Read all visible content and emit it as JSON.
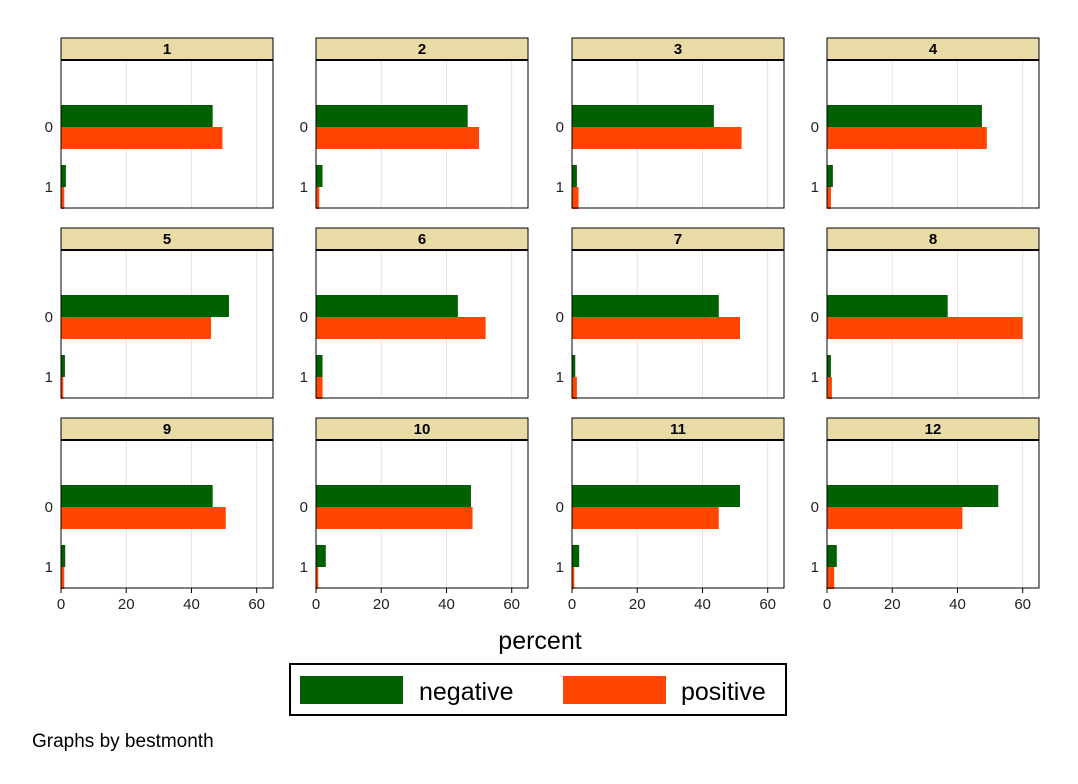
{
  "chart_data": {
    "type": "bar",
    "orientation": "horizontal",
    "facet_by": "bestmonth",
    "categories": [
      "0",
      "1"
    ],
    "xlabel": "percent",
    "xlim": [
      0,
      65
    ],
    "xticks": [
      0,
      20,
      40,
      60
    ],
    "grid": true,
    "legend_position": "bottom",
    "note": "Graphs by bestmonth",
    "series": [
      {
        "name": "negative",
        "color": "#006000"
      },
      {
        "name": "positive",
        "color": "#ff4500"
      }
    ],
    "panels": [
      {
        "label": "1",
        "negative": [
          46.5,
          1.5
        ],
        "positive": [
          49.5,
          1.0
        ]
      },
      {
        "label": "2",
        "negative": [
          46.5,
          2.0
        ],
        "positive": [
          50.0,
          1.0
        ]
      },
      {
        "label": "3",
        "negative": [
          43.5,
          1.5
        ],
        "positive": [
          52.0,
          2.0
        ]
      },
      {
        "label": "4",
        "negative": [
          47.5,
          1.8
        ],
        "positive": [
          49.0,
          1.2
        ]
      },
      {
        "label": "5",
        "negative": [
          51.5,
          1.2
        ],
        "positive": [
          46.0,
          0.7
        ]
      },
      {
        "label": "6",
        "negative": [
          43.5,
          2.0
        ],
        "positive": [
          52.0,
          2.0
        ]
      },
      {
        "label": "7",
        "negative": [
          45.0,
          1.0
        ],
        "positive": [
          51.5,
          1.5
        ]
      },
      {
        "label": "8",
        "negative": [
          37.0,
          1.2
        ],
        "positive": [
          60.0,
          1.5
        ]
      },
      {
        "label": "9",
        "negative": [
          46.5,
          1.3
        ],
        "positive": [
          50.5,
          1.0
        ]
      },
      {
        "label": "10",
        "negative": [
          47.5,
          3.0
        ],
        "positive": [
          48.0,
          0.7
        ]
      },
      {
        "label": "11",
        "negative": [
          51.5,
          2.2
        ],
        "positive": [
          45.0,
          0.7
        ]
      },
      {
        "label": "12",
        "negative": [
          52.5,
          3.0
        ],
        "positive": [
          41.5,
          2.2
        ]
      }
    ]
  }
}
